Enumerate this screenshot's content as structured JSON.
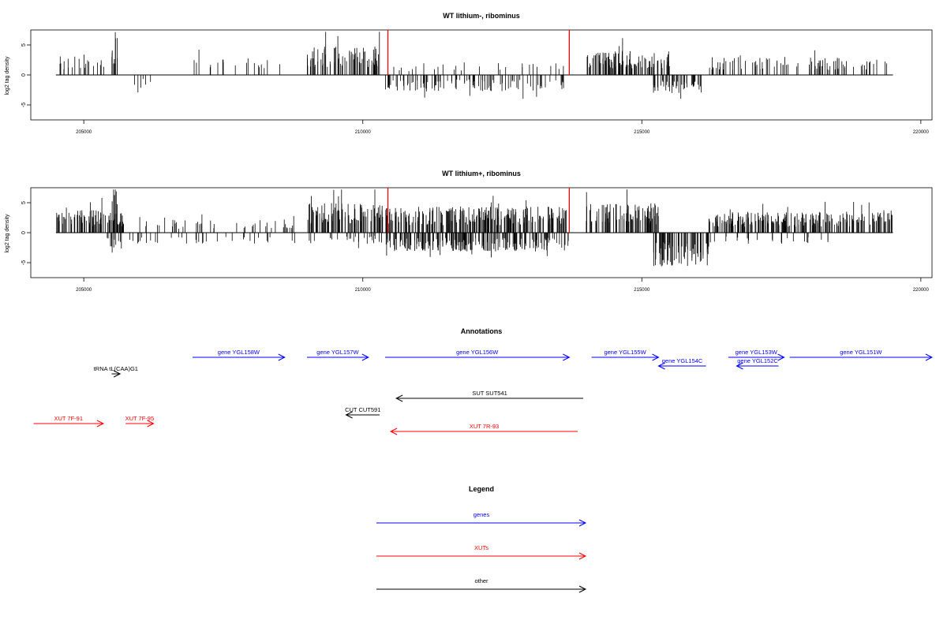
{
  "chart_data": [
    {
      "type": "bar",
      "title": "WT lithium-, ribominus",
      "ylabel": "log2 tag density",
      "xlim": [
        204050,
        220200
      ],
      "ylim": [
        -7.5,
        7.5
      ],
      "xticks": [
        205000,
        210000,
        215000,
        220000
      ],
      "yticks": [
        -5,
        0,
        5
      ],
      "ytick_labels": [
        "-5",
        "0",
        "5"
      ],
      "baseline": {
        "x": [
          204500,
          219500
        ],
        "y": 0
      },
      "density_profile": {
        "description_free": true,
        "regions": [
          {
            "x": [
              204500,
              205700
            ],
            "sign": "+",
            "level": 2.5,
            "density": 0.25
          },
          {
            "x": [
              205000,
              205100
            ],
            "sign": "+",
            "level": 3.2,
            "density": 0.4
          },
          {
            "x": [
              205500,
              205600
            ],
            "sign": "+",
            "level": 6.5,
            "density": 1.0
          },
          {
            "x": [
              205900,
              206200
            ],
            "sign": "-",
            "level": 1.8,
            "density": 0.3
          },
          {
            "x": [
              206800,
              208600
            ],
            "sign": "+",
            "level": 2.2,
            "density": 0.15
          },
          {
            "x": [
              209000,
              210300
            ],
            "sign": "+",
            "level": 3.8,
            "density": 0.9
          },
          {
            "x": [
              210400,
              213600
            ],
            "sign": "-",
            "level": 2.2,
            "density": 0.45
          },
          {
            "x": [
              210400,
              213600
            ],
            "sign": "+",
            "level": 1.8,
            "density": 0.12
          },
          {
            "x": [
              214000,
              215500
            ],
            "sign": "+",
            "level": 3.2,
            "density": 1.0
          },
          {
            "x": [
              215200,
              216100
            ],
            "sign": "-",
            "level": 2.5,
            "density": 0.7
          },
          {
            "x": [
              216200,
              219400
            ],
            "sign": "+",
            "level": 2.4,
            "density": 0.4
          }
        ]
      },
      "markers": [
        {
          "x": 210450,
          "y": 7.5,
          "color": "#ff0000"
        },
        {
          "x": 213700,
          "y": 7.5,
          "color": "#ff0000"
        }
      ]
    },
    {
      "type": "bar",
      "title": "WT lithium+, ribominus",
      "ylabel": "log2 tag density",
      "xlim": [
        204050,
        220200
      ],
      "ylim": [
        -7.5,
        7.5
      ],
      "xticks": [
        205000,
        210000,
        215000,
        220000
      ],
      "yticks": [
        -5,
        0,
        5
      ],
      "ytick_labels": [
        "-5",
        "0",
        "5"
      ],
      "baseline": {
        "x": [
          204500,
          219500
        ],
        "y": 0
      },
      "density_profile": {
        "regions": [
          {
            "x": [
              204500,
              205700
            ],
            "sign": "+",
            "level": 3.0,
            "density": 1.0
          },
          {
            "x": [
              205350,
              205700
            ],
            "sign": "-",
            "level": 2.2,
            "density": 0.5
          },
          {
            "x": [
              205500,
              205600
            ],
            "sign": "+",
            "level": 6.5,
            "density": 1.0
          },
          {
            "x": [
              205700,
              208800
            ],
            "sign": "+",
            "level": 1.8,
            "density": 0.2
          },
          {
            "x": [
              205700,
              208800
            ],
            "sign": "-",
            "level": 1.5,
            "density": 0.15
          },
          {
            "x": [
              209000,
              210400
            ],
            "sign": "+",
            "level": 4.0,
            "density": 1.0
          },
          {
            "x": [
              209000,
              210400
            ],
            "sign": "-",
            "level": 1.5,
            "density": 0.25
          },
          {
            "x": [
              210400,
              213700
            ],
            "sign": "+",
            "level": 3.5,
            "density": 1.0
          },
          {
            "x": [
              210400,
              213700
            ],
            "sign": "-",
            "level": 2.5,
            "density": 0.9
          },
          {
            "x": [
              214000,
              215300
            ],
            "sign": "+",
            "level": 4.0,
            "density": 1.0
          },
          {
            "x": [
              215200,
              216200
            ],
            "sign": "-",
            "level": 4.5,
            "density": 1.0
          },
          {
            "x": [
              216200,
              219500
            ],
            "sign": "+",
            "level": 2.8,
            "density": 1.0
          },
          {
            "x": [
              216200,
              218500
            ],
            "sign": "-",
            "level": 1.5,
            "density": 0.15
          }
        ]
      },
      "markers": [
        {
          "x": 210450,
          "y": 7.5,
          "color": "#ff0000"
        },
        {
          "x": 213700,
          "y": 7.5,
          "color": "#ff0000"
        }
      ]
    }
  ],
  "annotations": {
    "title": "Annotations",
    "colors": {
      "genes": "#0000ff",
      "XUTs": "#ff0000",
      "other": "#000000"
    },
    "features": [
      {
        "label": "gene YGL158W",
        "x1": 206950,
        "x2": 208600,
        "row": 0,
        "color": "#0000ff",
        "dir": "right"
      },
      {
        "label": "gene YGL157W",
        "x1": 209000,
        "x2": 210100,
        "row": 0,
        "color": "#0000ff",
        "dir": "right"
      },
      {
        "label": "gene YGL156W",
        "x1": 210400,
        "x2": 213700,
        "row": 0,
        "color": "#0000ff",
        "dir": "right"
      },
      {
        "label": "gene YGL155W",
        "x1": 214100,
        "x2": 215300,
        "row": 0,
        "color": "#0000ff",
        "dir": "right"
      },
      {
        "label": "gene YGL154C",
        "x1": 215300,
        "x2": 216150,
        "row": 1,
        "color": "#0000ff",
        "dir": "left"
      },
      {
        "label": "gene YGL153W",
        "x1": 216550,
        "x2": 217550,
        "row": 0,
        "color": "#0000ff",
        "dir": "right"
      },
      {
        "label": "gene YGL152C",
        "x1": 216700,
        "x2": 217450,
        "row": 1,
        "color": "#0000ff",
        "dir": "left"
      },
      {
        "label": "gene YGL151W",
        "x1": 217650,
        "x2": 220200,
        "row": 0,
        "color": "#0000ff",
        "dir": "right"
      },
      {
        "label": "tRNA tL(CAA)G1",
        "x1": 205500,
        "x2": 205650,
        "row": 2,
        "color": "#000000",
        "dir": "right"
      },
      {
        "label": "SUT SUT541",
        "x1": 210600,
        "x2": 213950,
        "row": 3,
        "color": "#000000",
        "dir": "left"
      },
      {
        "label": "CUT CUT591",
        "x1": 209700,
        "x2": 210300,
        "row": 4,
        "color": "#000000",
        "dir": "left"
      },
      {
        "label": "XUT 7F-91",
        "x1": 204100,
        "x2": 205350,
        "row": 5,
        "color": "#ff0000",
        "dir": "right"
      },
      {
        "label": "XUT 7F-95",
        "x1": 205750,
        "x2": 206250,
        "row": 5,
        "color": "#ff0000",
        "dir": "right"
      },
      {
        "label": "XUT 7R-93",
        "x1": 210500,
        "x2": 213850,
        "row": 6,
        "color": "#ff0000",
        "dir": "left"
      }
    ]
  },
  "legend": {
    "title": "Legend",
    "entries": [
      {
        "label": "genes",
        "color": "#0000ff"
      },
      {
        "label": "XUTs",
        "color": "#ff0000"
      },
      {
        "label": "other",
        "color": "#000000"
      }
    ]
  }
}
